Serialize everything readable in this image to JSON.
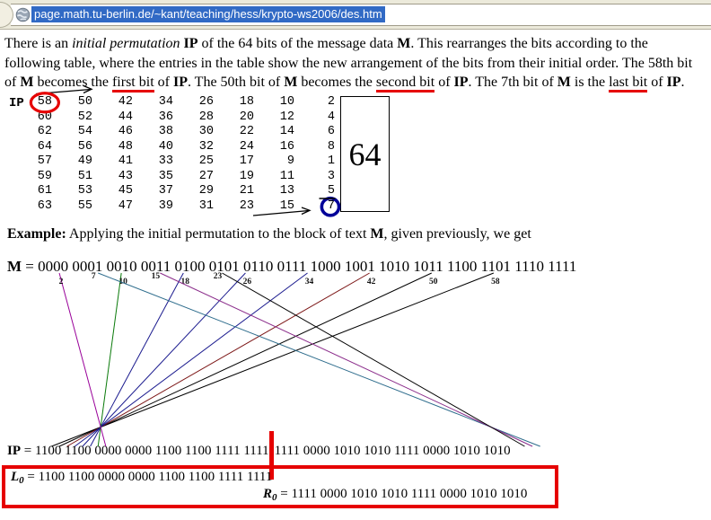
{
  "browser": {
    "url": "page.math.tu-berlin.de/~kant/teaching/hess/krypto-ws2006/des.htm"
  },
  "intro": {
    "segments": [
      {
        "t": "There is an ",
        "s": "n"
      },
      {
        "t": "initial permutation",
        "s": "i"
      },
      {
        "t": " ",
        "s": "n"
      },
      {
        "t": "IP",
        "s": "b"
      },
      {
        "t": " of the 64 bits of the message data ",
        "s": "n"
      },
      {
        "t": "M",
        "s": "b"
      },
      {
        "t": ". This rearranges the bits according to the following table, where the entries in the table show the new arrangement of the bits from their initial order. The 58th bit of ",
        "s": "n"
      },
      {
        "t": "M",
        "s": "b"
      },
      {
        "t": " becomes the ",
        "s": "n"
      },
      {
        "t": "first bit",
        "s": "u"
      },
      {
        "t": " of ",
        "s": "n"
      },
      {
        "t": "IP",
        "s": "b"
      },
      {
        "t": ". The 50th bit of ",
        "s": "n"
      },
      {
        "t": "M",
        "s": "b"
      },
      {
        "t": " becomes the ",
        "s": "n"
      },
      {
        "t": "second bit",
        "s": "u"
      },
      {
        "t": " of ",
        "s": "n"
      },
      {
        "t": "IP",
        "s": "b"
      },
      {
        "t": ". The 7th bit of ",
        "s": "n"
      },
      {
        "t": "M",
        "s": "b"
      },
      {
        "t": " is the ",
        "s": "n"
      },
      {
        "t": "last bit",
        "s": "u"
      },
      {
        "t": " of ",
        "s": "n"
      },
      {
        "t": "IP",
        "s": "b"
      },
      {
        "t": ".",
        "s": "n"
      }
    ]
  },
  "ip_table": {
    "label": "IP",
    "rows": [
      [
        58,
        50,
        42,
        34,
        26,
        18,
        10,
        2
      ],
      [
        60,
        52,
        44,
        36,
        28,
        20,
        12,
        4
      ],
      [
        62,
        54,
        46,
        38,
        30,
        22,
        14,
        6
      ],
      [
        64,
        56,
        48,
        40,
        32,
        24,
        16,
        8
      ],
      [
        57,
        49,
        41,
        33,
        25,
        17,
        9,
        1
      ],
      [
        59,
        51,
        43,
        35,
        27,
        19,
        11,
        3
      ],
      [
        61,
        53,
        45,
        37,
        29,
        21,
        13,
        5
      ],
      [
        63,
        55,
        47,
        39,
        31,
        23,
        15,
        7
      ]
    ],
    "box_value": "64",
    "annotations": {
      "red_circle_cell": [
        0,
        0
      ],
      "blue_circle_cell": [
        7,
        7
      ],
      "underline_cell": [
        6,
        7
      ]
    }
  },
  "example": {
    "segments": [
      {
        "t": "Example:",
        "s": "b"
      },
      {
        "t": " Applying the initial permutation to the block of text ",
        "s": "n"
      },
      {
        "t": "M",
        "s": "b"
      },
      {
        "t": ", given previously, we get",
        "s": "n"
      }
    ]
  },
  "m_line": {
    "label": "M",
    "eq": " = ",
    "value": "0000 0001 0010 0011 0100 0101 0110 0111 1000 1001 1010 1011 1100 1101 1110 1111"
  },
  "diagram": {
    "lines": [
      {
        "from": 58,
        "to": 1,
        "color": "#000000"
      },
      {
        "from": 50,
        "to": 2,
        "color": "#000000"
      },
      {
        "from": 42,
        "to": 3,
        "color": "#7b1414"
      },
      {
        "from": 34,
        "to": 4,
        "color": "#1a1a8e"
      },
      {
        "from": 26,
        "to": 5,
        "color": "#1a1a8e"
      },
      {
        "from": 18,
        "to": 6,
        "color": "#1a1a8e"
      },
      {
        "from": 10,
        "to": 7,
        "color": "#0a7a0a"
      },
      {
        "from": 2,
        "to": 8,
        "color": "#990099"
      },
      {
        "from": 7,
        "to": 64,
        "color": "#2d6c8c"
      },
      {
        "from": 15,
        "to": 63,
        "color": "#8b2d8b"
      },
      {
        "from": 23,
        "to": 62,
        "color": "#000000"
      }
    ]
  },
  "ip_line": {
    "label": "IP",
    "eq": " = ",
    "left": "1100 1100 0000 0000 1100 1100 1111 1111",
    "right": "1111 0000 1010 1010 1111 0000 1010 1010"
  },
  "result_box": {
    "l": {
      "label": "L",
      "sub": "0",
      "eq": " = ",
      "value": "1100 1100 0000 0000 1100 1100 1111 1111"
    },
    "r": {
      "label": "R",
      "sub": "0",
      "eq": " = ",
      "value": "1111 0000 1010 1010 1111 0000 1010 1010"
    }
  },
  "colors": {
    "annotation_red": "#e60000",
    "annotation_blue": "#000099",
    "selection_blue": "#316ac5"
  }
}
